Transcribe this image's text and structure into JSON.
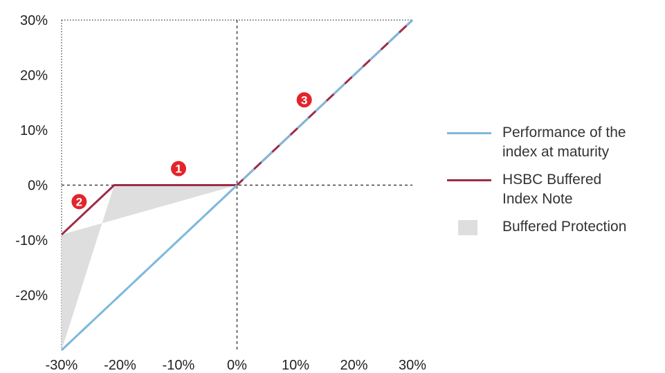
{
  "chart_data": {
    "type": "line",
    "x_ticks": [
      "-30%",
      "-20%",
      "-10%",
      "0%",
      "10%",
      "20%",
      "30%"
    ],
    "y_ticks": [
      "30%",
      "20%",
      "10%",
      "0%",
      "-10%",
      "-20%"
    ],
    "xlim": [
      -30,
      30
    ],
    "ylim": [
      -30,
      30
    ],
    "series": [
      {
        "name": "Performance of the index at maturity",
        "color": "#7fb8dc",
        "x": [
          -30,
          30
        ],
        "y": [
          -30,
          30
        ]
      },
      {
        "name": "HSBC Buffered Index Note",
        "color": "#9e2b46",
        "x": [
          -30,
          -21,
          0,
          30
        ],
        "y": [
          -9,
          0,
          0,
          30
        ]
      }
    ],
    "shaded_region": {
      "name": "Buffered Protection",
      "color": "#dedede",
      "x": [
        -30,
        -21,
        0,
        -30
      ],
      "y": [
        -30,
        0,
        0,
        -9
      ]
    },
    "annotations": [
      {
        "label": "1",
        "x": -10,
        "y": 3
      },
      {
        "label": "2",
        "x": -27,
        "y": -3
      },
      {
        "label": "3",
        "x": 11.5,
        "y": 15.5
      }
    ],
    "grid": "dotted frame with dashed zero lines",
    "legend_position": "right"
  },
  "legend": {
    "items": [
      {
        "label_line1": "Performance of the",
        "label_line2": "index at maturity",
        "color": "#7fb8dc"
      },
      {
        "label_line1": "HSBC Buffered",
        "label_line2": "Index Note",
        "color": "#9e2b46"
      },
      {
        "label_line1": "Buffered Protection",
        "label_line2": "",
        "color": "#dedede"
      }
    ]
  }
}
